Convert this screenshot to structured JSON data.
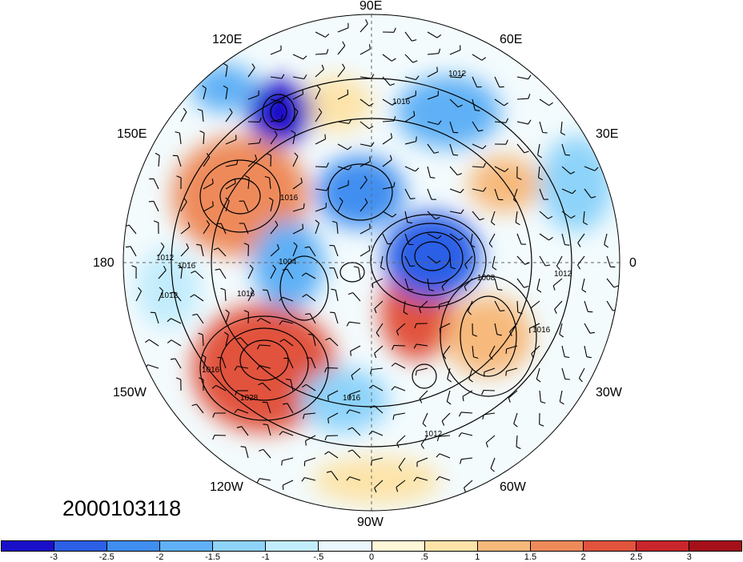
{
  "longitude_labels": {
    "n90e": "90E",
    "n120e": "120E",
    "n60e": "60E",
    "n150e": "150E",
    "n30e": "30E",
    "n180": "180",
    "n0": "0",
    "n150w": "150W",
    "n30w": "30W",
    "n120w": "120W",
    "n60w": "60W",
    "n90w": "90W"
  },
  "timestamp": "2000103118",
  "colorbar": {
    "colors": [
      "#1a0fc9",
      "#2c5fe6",
      "#3f8ef0",
      "#5fb0f6",
      "#8dd3fa",
      "#c2ecfc",
      "#eaf8fd",
      "#fff7d8",
      "#fde3a8",
      "#f7b97b",
      "#ee8a5a",
      "#e1533d",
      "#c8262a",
      "#a5101a"
    ],
    "labels": [
      "-3",
      "-2.5",
      "-2",
      "-1.5",
      "-1",
      "-.5",
      "0",
      ".5",
      "1",
      "1.5",
      "2",
      "2.5",
      "3"
    ]
  },
  "isobar_labels": [
    "1012",
    "1016",
    "1012",
    "1016",
    "1012",
    "1008",
    "1012",
    "1016",
    "1016",
    "1016",
    "1028",
    "1016",
    "1012",
    "1016",
    "1004"
  ]
}
